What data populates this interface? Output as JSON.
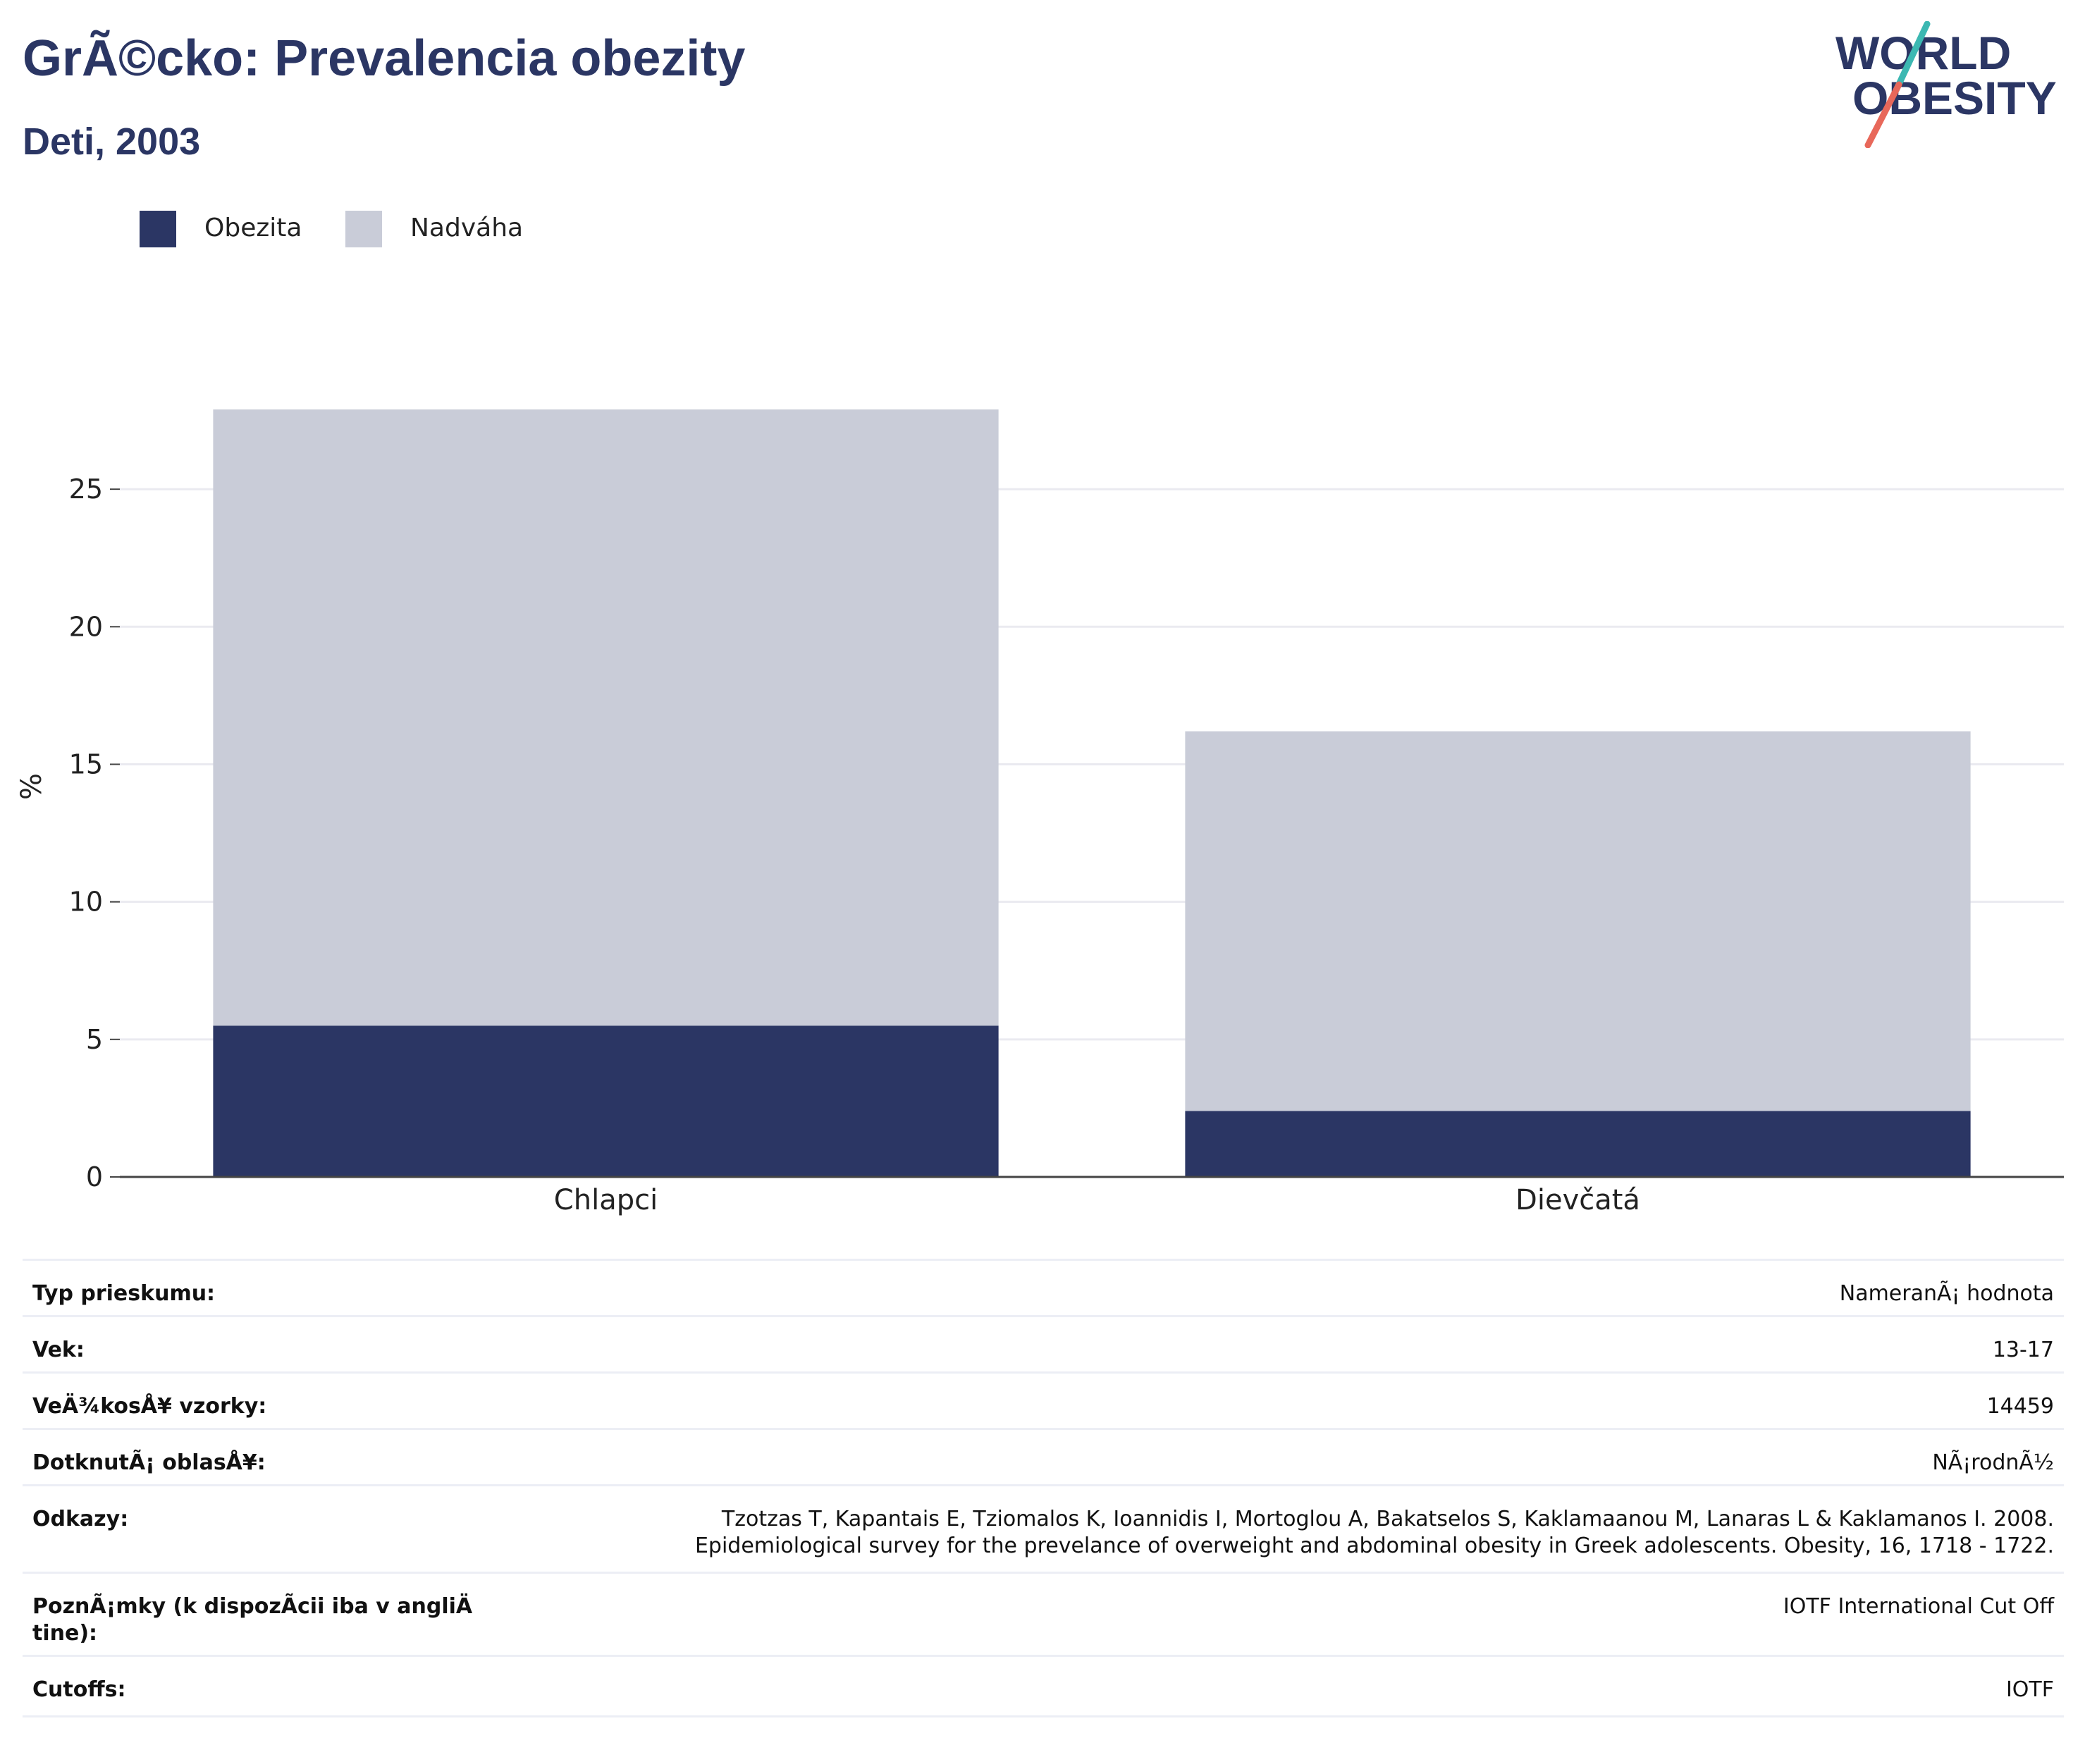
{
  "header": {
    "title": "GrÃ©cko: Prevalencia obezity",
    "subtitle": "Deti, 2003"
  },
  "logo": {
    "line1": "WORLD",
    "line2": "OBESITY",
    "colors": {
      "text": "#2b3664",
      "slash_top": "#3cb8b2",
      "slash_bottom": "#e8685a"
    }
  },
  "colors": {
    "obesity": "#2b3664",
    "overweight": "#c9ccd8",
    "grid": "#eaeaf0",
    "axis": "#444444"
  },
  "chart_data": {
    "type": "bar",
    "stacked": true,
    "categories": [
      "Chlapci",
      "Dievčatá"
    ],
    "series": [
      {
        "name": "Obezita",
        "values": [
          5.5,
          2.4
        ]
      },
      {
        "name": "Nadváha",
        "values": [
          22.4,
          13.8
        ]
      }
    ],
    "totals": [
      27.9,
      16.2
    ],
    "ylabel": "%",
    "ylim": [
      0,
      29
    ],
    "yticks": [
      0,
      5,
      10,
      15,
      20,
      25
    ],
    "grid": true,
    "legend": "top-left"
  },
  "info": [
    {
      "label": "Typ prieskumu:",
      "value": "NameranÃ¡ hodnota"
    },
    {
      "label": "Vek:",
      "value": "13-17"
    },
    {
      "label": "VeÄ¾kosÅ¥ vzorky:",
      "value": "14459"
    },
    {
      "label": "DotknutÃ¡ oblasÅ¥:",
      "value": "NÃ¡rodnÃ½"
    },
    {
      "label": "Odkazy:",
      "value": "Tzotzas T, Kapantais E, Tziomalos K, Ioannidis I, Mortoglou A, Bakatselos S, Kaklamaanou M, Lanaras L & Kaklamanos I. 2008.\nEpidemiological survey for the prevelance of overweight and abdominal obesity in Greek adolescents. Obesity, 16, 1718 - 1722."
    },
    {
      "label": "PoznÃ¡mky (k dispozÃ­cii iba v angliÄ\ntine):",
      "value": "IOTF International Cut Off"
    },
    {
      "label": "Cutoffs:",
      "value": "IOTF"
    }
  ]
}
